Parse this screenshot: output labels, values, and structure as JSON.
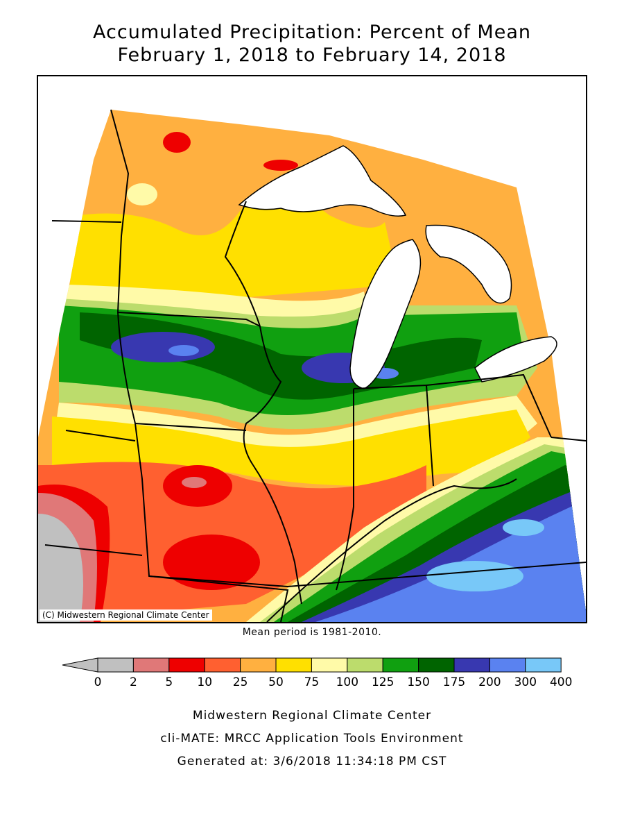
{
  "title": {
    "line1": "Accumulated Precipitation: Percent of Mean",
    "line2": "February 1, 2018 to February 14, 2018"
  },
  "map": {
    "region": "Midwest United States",
    "copyright": "(C) Midwestern Regional Climate Center",
    "mean_period": "Mean period is 1981-2010."
  },
  "legend": {
    "ticks": [
      "0",
      "2",
      "5",
      "10",
      "25",
      "50",
      "75",
      "100",
      "125",
      "150",
      "175",
      "200",
      "300",
      "400"
    ],
    "colors": [
      "#c0c0c0",
      "#e07878",
      "#ee0000",
      "#ff6030",
      "#ffb040",
      "#ffe000",
      "#fffaa8",
      "#bcdc6c",
      "#10a010",
      "#006400",
      "#3838b0",
      "#5a82f0",
      "#78c8f8"
    ]
  },
  "footer": {
    "line1": "Midwestern Regional Climate Center",
    "line2": "cli-MATE: MRCC Application Tools Environment",
    "line3": "Generated at: 3/6/2018 11:34:18 PM CST"
  }
}
